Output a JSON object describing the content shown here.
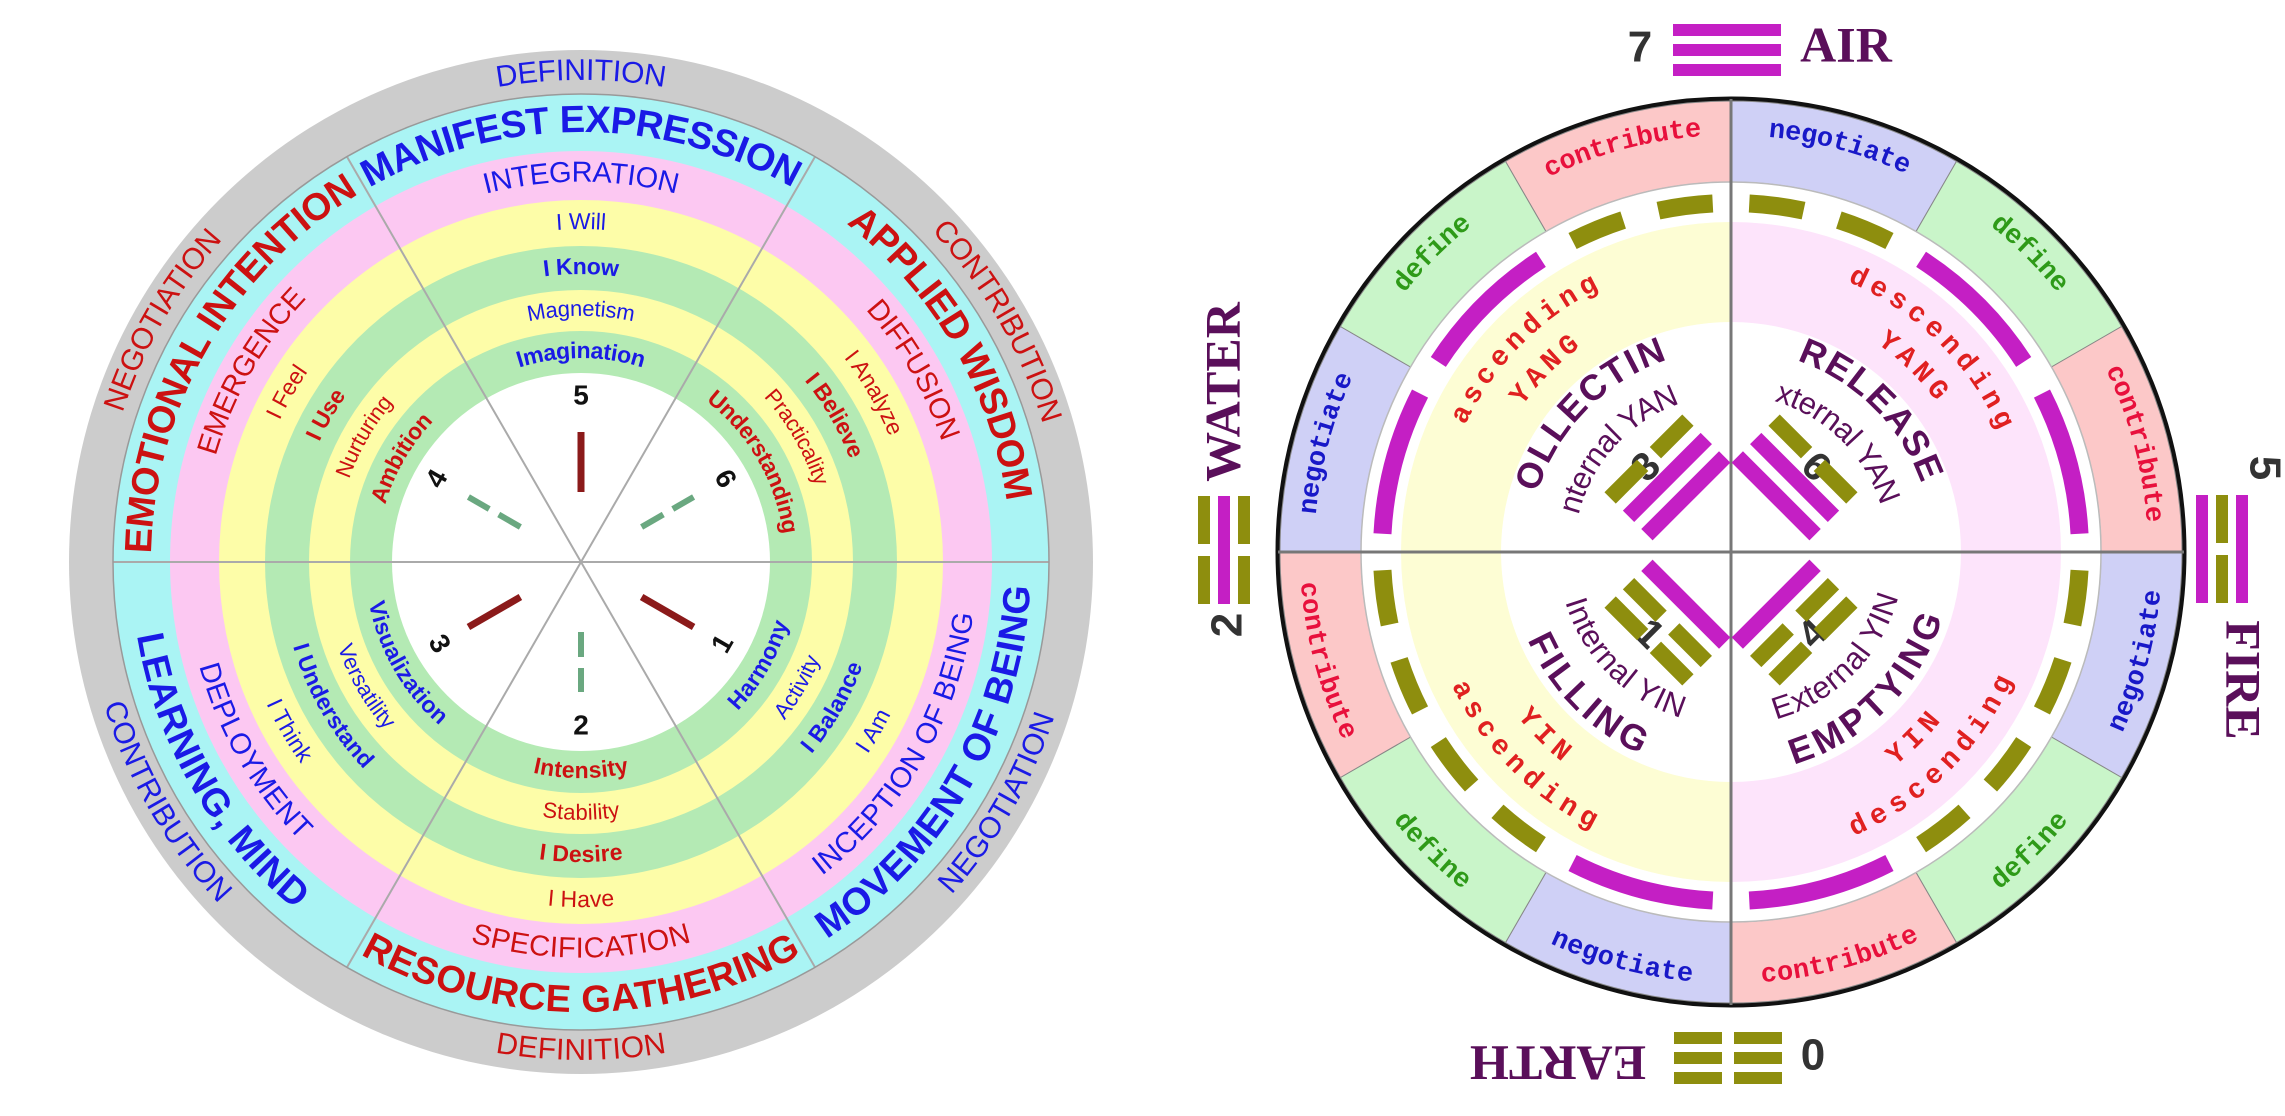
{
  "colors": {
    "red": "#cc1111",
    "blue": "#1a1ae6",
    "dark_red": "#8b1a1a",
    "grey_ring": "#cccccc",
    "cyan": "#aaf4f4",
    "pink": "#fcc8f2",
    "yellow": "#fdfda8",
    "green": "#b4eab4",
    "magenta": "#c41fc4",
    "olive": "#8e8e0e",
    "purple": "#5a0f5a",
    "dark_grey": "#333333",
    "tag_pink": "#fcc8c8",
    "tag_blue": "#cfd0f6",
    "tag_green": "#c9f5c9",
    "tag_text_red": "#e8103c",
    "tag_text_blue": "#1818c8",
    "tag_text_green": "#2e9a18",
    "pale_yellow": "#fdfdd4",
    "pale_pink": "#fde4fb"
  },
  "left_wheel": {
    "outer": {
      "top": "DEFINITION",
      "upper_right": "CONTRIBUTION",
      "lower_right": "NEGOTIATION",
      "bottom": "DEFINITION",
      "lower_left": "CONTRIBUTION",
      "upper_left": "NEGOTIATION"
    },
    "sectors": {
      "top": {
        "title": "MANIFEST EXPRESSION",
        "sub": "INTEGRATION",
        "statement": "I Will",
        "knowing": "I Know",
        "quality": "Magnetism",
        "faculty": "Imagination",
        "number": "5"
      },
      "upper_right": {
        "title": "APPLIED WISDOM",
        "sub": "DIFFUSION",
        "statement": "I Analyze",
        "knowing": "I Believe",
        "quality": "Practicality",
        "faculty": "Understanding",
        "number": "6"
      },
      "lower_right": {
        "title": "MOVEMENT OF BEING",
        "sub": "INCEPTION OF BEING",
        "statement": "I Am",
        "knowing": "I Balance",
        "quality": "Activity",
        "faculty": "Harmony",
        "number": "1"
      },
      "bottom": {
        "title": "RESOURCE GATHERING",
        "sub": "SPECIFICATION",
        "statement": "I Have",
        "knowing": "I Desire",
        "quality": "Stability",
        "faculty": "Intensity",
        "number": "2"
      },
      "lower_left": {
        "title": "LEARNING, MIND",
        "sub": "DEPLOYMENT",
        "statement": "I Think",
        "knowing": "I Understand",
        "quality": "Versatility",
        "faculty": "Visualization",
        "number": "3"
      },
      "upper_left": {
        "title": "EMOTIONAL INTENTION",
        "sub": "EMERGENCE",
        "statement": "I Feel",
        "knowing": "I Use",
        "quality": "Nurturing",
        "faculty": "Ambition",
        "number": "4"
      }
    }
  },
  "right_wheel": {
    "elements": {
      "top": {
        "number": "7",
        "name": "AIR"
      },
      "right": {
        "number": "5",
        "name": "FIRE"
      },
      "bottom": {
        "number": "0",
        "name": "EARTH"
      },
      "left": {
        "number": "2",
        "name": "WATER"
      }
    },
    "tags": {
      "contribute": "contribute",
      "negotiate": "negotiate",
      "define": "define"
    },
    "quadrants": {
      "upper_left": {
        "title": "COLLECTING",
        "sub": "Internal YANG",
        "arc": "ascending",
        "polarity": "YANG",
        "number": "3"
      },
      "upper_right": {
        "title": "RELEASE",
        "sub": "External YANG",
        "arc": "descending",
        "polarity": "YANG",
        "number": "6"
      },
      "lower_left": {
        "title": "FILLING",
        "sub": "Internal YIN",
        "arc": "ascending",
        "polarity": "YIN",
        "number": "1"
      },
      "lower_right": {
        "title": "EMPTYING",
        "sub": "External YIN",
        "arc": "descending",
        "polarity": "YIN",
        "number": "4"
      }
    }
  }
}
